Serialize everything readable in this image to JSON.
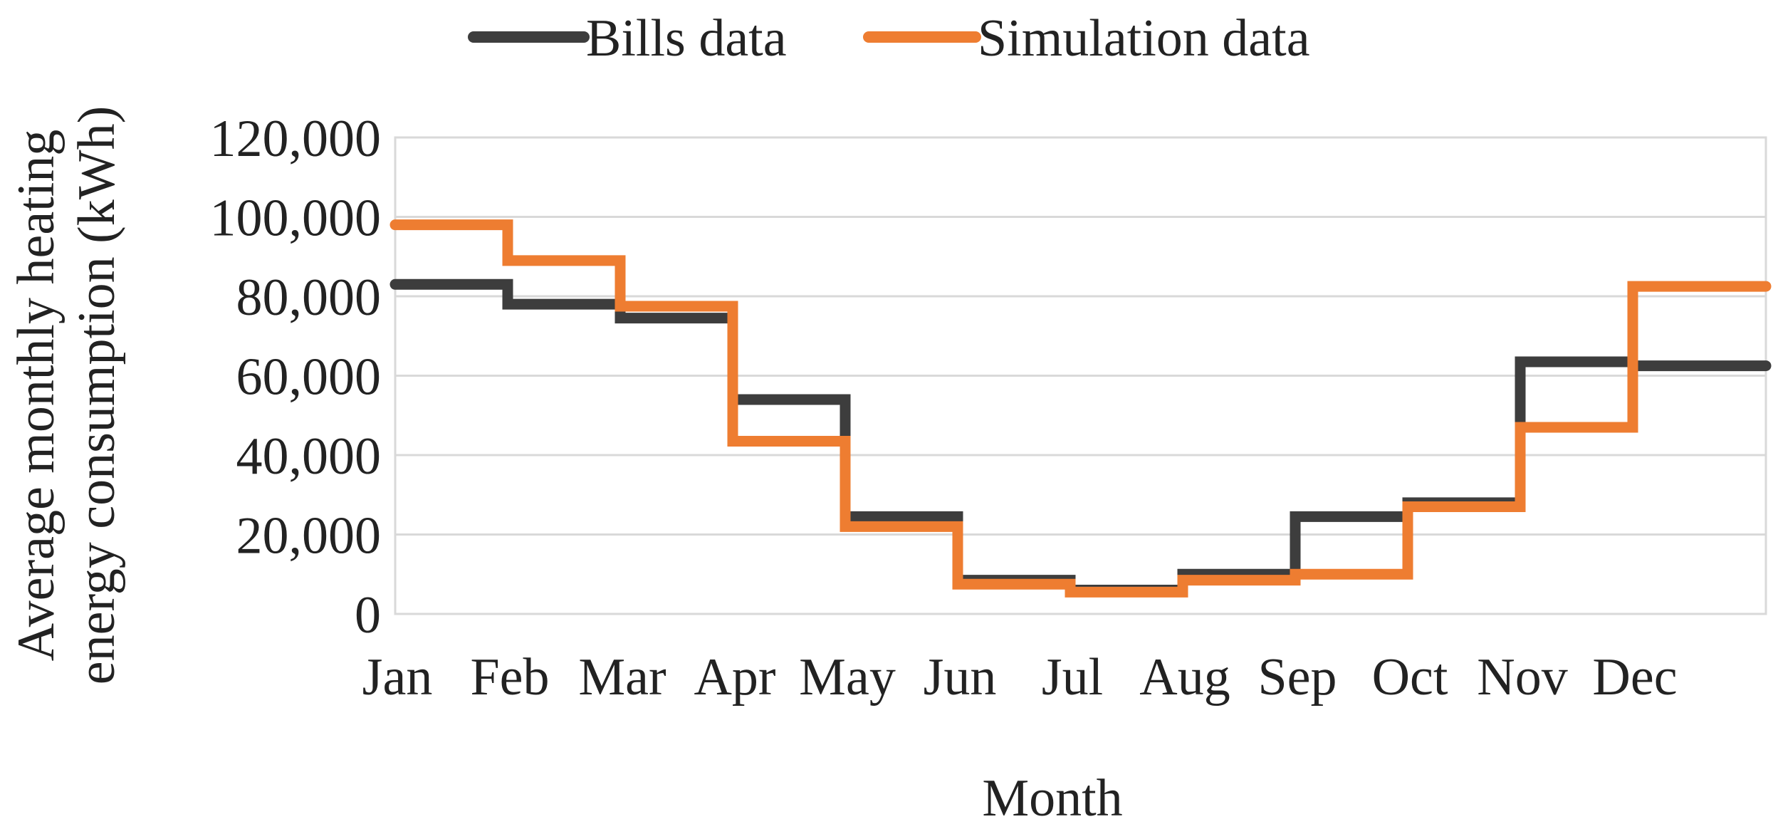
{
  "chart_data": {
    "type": "line",
    "step": "post",
    "title": "",
    "xlabel": "Month",
    "ylabel_lines": [
      "Average monthly heating",
      "energy consumption (kWh)"
    ],
    "categories": [
      "Jan",
      "Feb",
      "Mar",
      "Apr",
      "May",
      "Jun",
      "Jul",
      "Aug",
      "Sep",
      "Oct",
      "Nov",
      "Dec"
    ],
    "yticks": [
      0,
      20000,
      40000,
      60000,
      80000,
      100000,
      120000
    ],
    "ytick_labels": [
      "0",
      "20,000",
      "40,000",
      "60,000",
      "80,000",
      "100,000",
      "120,000"
    ],
    "ylim": [
      0,
      120000
    ],
    "grid": true,
    "legend_position": "top",
    "series": [
      {
        "name": "Bills data",
        "color": "#3d3d3d",
        "values": [
          83000,
          78000,
          74500,
          54000,
          24500,
          8500,
          6000,
          10000,
          24500,
          28000,
          63500,
          62500
        ]
      },
      {
        "name": "Simulation data",
        "color": "#ee7d31",
        "values": [
          98000,
          89000,
          77500,
          43500,
          22000,
          7500,
          5500,
          8500,
          10000,
          27000,
          47000,
          82500
        ]
      }
    ]
  }
}
